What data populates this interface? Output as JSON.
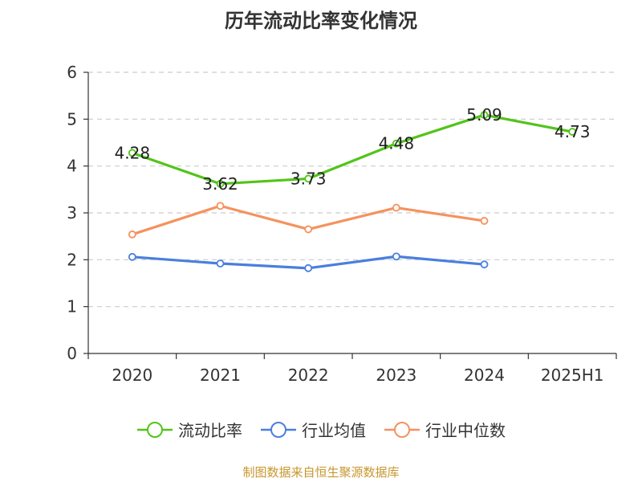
{
  "chart_data": {
    "type": "line",
    "title": "历年流动比率变化情况",
    "categories": [
      "2020",
      "2021",
      "2022",
      "2023",
      "2024",
      "2025H1"
    ],
    "ylim": [
      0,
      6
    ],
    "yticks": [
      "0",
      "1",
      "2",
      "3",
      "4",
      "5",
      "6"
    ],
    "grid": true,
    "legend_position": "bottom",
    "series": [
      {
        "name": "流动比率",
        "color": "#52c41a",
        "values": [
          4.28,
          3.62,
          3.73,
          4.48,
          5.09,
          4.73
        ],
        "labels": [
          "4.28",
          "3.62",
          "3.73",
          "4.48",
          "5.09",
          "4.73"
        ]
      },
      {
        "name": "行业均值",
        "color": "#4a7fdc",
        "values": [
          2.06,
          1.92,
          1.82,
          2.07,
          1.9,
          null
        ]
      },
      {
        "name": "行业中位数",
        "color": "#f5925e",
        "values": [
          2.54,
          3.15,
          2.65,
          3.11,
          2.83,
          null
        ]
      }
    ]
  },
  "footer": "制图数据来自恒生聚源数据库"
}
